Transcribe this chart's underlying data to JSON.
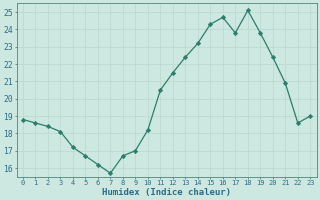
{
  "x": [
    0,
    1,
    2,
    3,
    4,
    5,
    6,
    7,
    8,
    9,
    10,
    11,
    12,
    13,
    14,
    15,
    16,
    17,
    18,
    19,
    20,
    21,
    22,
    23
  ],
  "y": [
    18.8,
    18.6,
    18.4,
    18.1,
    17.2,
    16.7,
    16.2,
    15.7,
    16.7,
    17.0,
    18.2,
    20.5,
    21.5,
    22.4,
    23.2,
    24.3,
    24.7,
    23.8,
    25.1,
    23.8,
    22.4,
    20.9,
    18.6,
    19.0
  ],
  "line_color": "#2e7d6b",
  "marker": "D",
  "markersize": 2.2,
  "linewidth": 0.9,
  "bg_color": "#cce8e0",
  "grid_color": "#b8d8d0",
  "xlabel": "Humidex (Indice chaleur)",
  "ylabel": "",
  "ylim": [
    15.5,
    25.5
  ],
  "yticks": [
    16,
    17,
    18,
    19,
    20,
    21,
    22,
    23,
    24,
    25
  ],
  "xticks": [
    0,
    1,
    2,
    3,
    4,
    5,
    6,
    7,
    8,
    9,
    10,
    11,
    12,
    13,
    14,
    15,
    16,
    17,
    18,
    19,
    20,
    21,
    22,
    23
  ],
  "tick_color": "#2e6b8a",
  "axis_color": "#4a8a7a",
  "xlabel_fontsize": 6.5,
  "ytick_fontsize": 5.8,
  "xtick_fontsize": 5.0
}
